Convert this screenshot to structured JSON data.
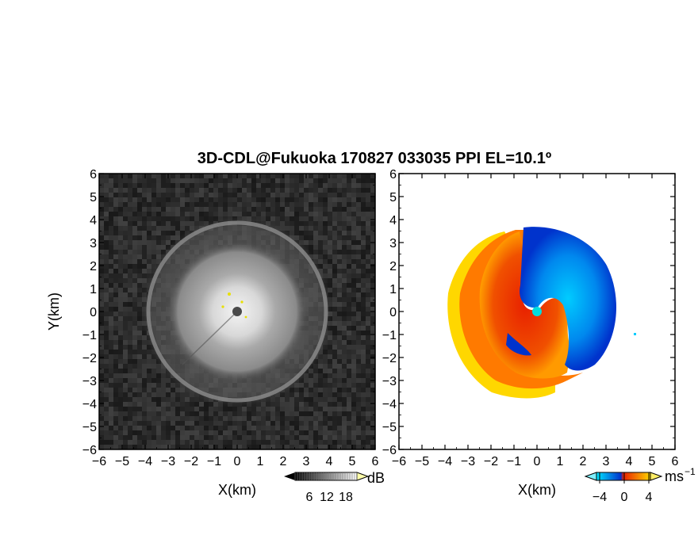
{
  "title": "3D-CDL@Fukuoka 170827 033035 PPI EL=10.1º",
  "chart_data": [
    {
      "type": "heatmap",
      "name": "reflectivity-panel",
      "xlabel": "X(km)",
      "ylabel": "Y(km)",
      "xlim": [
        -6,
        6
      ],
      "ylim": [
        -6,
        6
      ],
      "xticks": [
        "−6",
        "−5",
        "−4",
        "−3",
        "−2",
        "−1",
        "0",
        "1",
        "2",
        "3",
        "4",
        "5",
        "6"
      ],
      "yticks": [
        "−6",
        "−5",
        "−4",
        "−3",
        "−2",
        "−1",
        "0",
        "1",
        "2",
        "3",
        "4",
        "5",
        "6"
      ],
      "colorbar": {
        "unit": "dB",
        "ticks": [
          "6",
          "12",
          "18"
        ],
        "colors": [
          "#000000",
          "#ffffff"
        ]
      }
    },
    {
      "type": "heatmap",
      "name": "velocity-panel",
      "xlabel": "X(km)",
      "ylabel": "",
      "xlim": [
        -6,
        6
      ],
      "ylim": [
        -6,
        6
      ],
      "xticks": [
        "−6",
        "−5",
        "−4",
        "−3",
        "−2",
        "−1",
        "0",
        "1",
        "2",
        "3",
        "4",
        "5",
        "6"
      ],
      "yticks": [
        "−6",
        "−5",
        "−4",
        "−3",
        "−2",
        "−1",
        "0",
        "1",
        "2",
        "3",
        "4",
        "5",
        "6"
      ],
      "colorbar": {
        "unit": "ms",
        "unit_exponent": "−1",
        "ticks": [
          "−4",
          "0",
          "4"
        ],
        "colors": [
          "#00e5ff",
          "#0033cc",
          "#e82000",
          "#ffd700"
        ]
      }
    }
  ]
}
